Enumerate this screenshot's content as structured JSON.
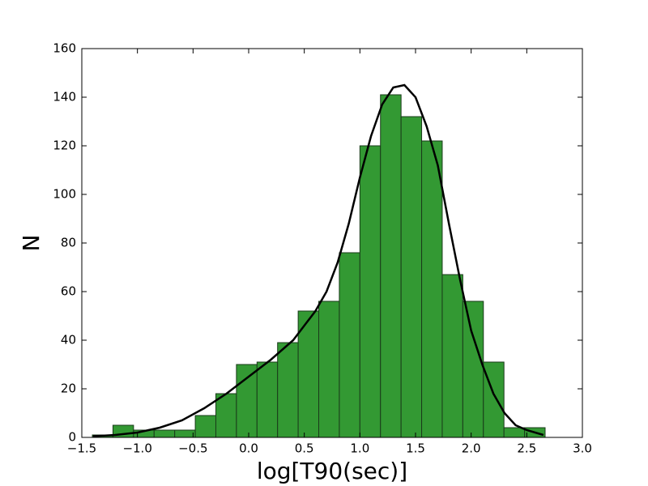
{
  "chart_data": {
    "type": "histogram",
    "xlabel": "log[T90(sec)]",
    "ylabel": "N",
    "bins": [
      -1.405,
      -1.22,
      -1.035,
      -0.85,
      -0.665,
      -0.48,
      -0.295,
      -0.11,
      0.075,
      0.26,
      0.445,
      0.63,
      0.815,
      1.0,
      1.185,
      1.37,
      1.555,
      1.74,
      1.925,
      2.11,
      2.295,
      2.48,
      2.665
    ],
    "values": [
      1,
      5,
      3,
      3,
      3,
      9,
      18,
      30,
      31,
      39,
      52,
      56,
      76,
      120,
      141,
      132,
      122,
      67,
      56,
      31,
      4,
      4
    ],
    "color": "#339933",
    "edgecolor": "#1a3a1a",
    "curve": {
      "color": "#000000",
      "x": [
        -1.4,
        -1.2,
        -1.0,
        -0.8,
        -0.6,
        -0.4,
        -0.2,
        0.0,
        0.2,
        0.4,
        0.5,
        0.6,
        0.7,
        0.8,
        0.9,
        1.0,
        1.1,
        1.2,
        1.3,
        1.4,
        1.5,
        1.6,
        1.7,
        1.75,
        1.8,
        1.9,
        2.0,
        2.1,
        2.2,
        2.3,
        2.4,
        2.5,
        2.65
      ],
      "values": [
        0.5,
        1,
        2,
        4,
        7,
        12,
        18,
        25,
        32,
        40,
        46,
        52,
        60,
        72,
        88,
        107,
        124,
        137,
        144,
        145,
        140,
        128,
        112,
        100,
        88,
        65,
        44,
        30,
        18,
        10,
        5,
        3,
        1
      ]
    },
    "xlim": [
      -1.5,
      3.0
    ],
    "ylim": [
      0,
      160
    ],
    "xticks": [
      {
        "value": -1.5,
        "label": "−1.5"
      },
      {
        "value": -1.0,
        "label": "−1.0"
      },
      {
        "value": -0.5,
        "label": "−0.5"
      },
      {
        "value": 0,
        "label": "0.0"
      },
      0.5,
      {
        "value": 1,
        "label": "1.0"
      },
      1.5,
      {
        "value": 2,
        "label": "2.0"
      },
      2.5,
      {
        "value": 3,
        "label": "3.0"
      }
    ],
    "yticks": [
      0,
      20,
      40,
      60,
      80,
      100,
      120,
      140,
      160
    ]
  }
}
